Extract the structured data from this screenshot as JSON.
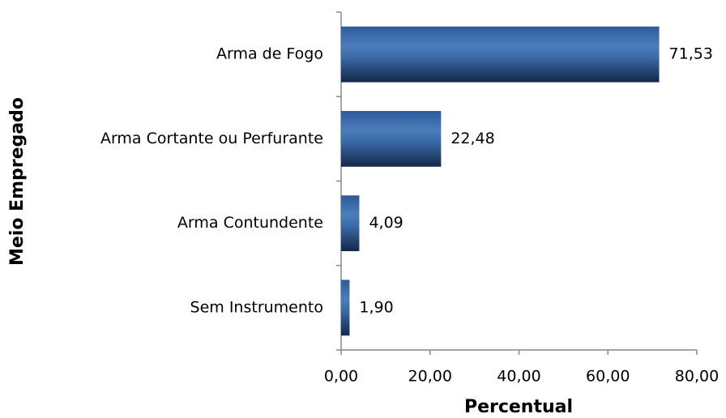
{
  "chart_data": {
    "type": "bar",
    "orientation": "horizontal",
    "x_label": "Percentual",
    "y_label": "Meio Empregado",
    "categories": [
      "Arma de Fogo",
      "Arma Cortante ou Perfurante",
      "Arma Contundente",
      "Sem Instrumento"
    ],
    "values": [
      71.53,
      22.48,
      4.09,
      1.9
    ],
    "value_labels": [
      "71,53",
      "22,48",
      "4,09",
      "1,90"
    ],
    "color": "#4a7ebb",
    "xlim": [
      0,
      80
    ],
    "xticks": [
      {
        "value": 0,
        "label": "0,00"
      },
      {
        "value": 20,
        "label": "20,00"
      },
      {
        "value": 40,
        "label": "40,00"
      },
      {
        "value": 60,
        "label": "60,00"
      },
      {
        "value": 80,
        "label": "80,00"
      }
    ]
  }
}
